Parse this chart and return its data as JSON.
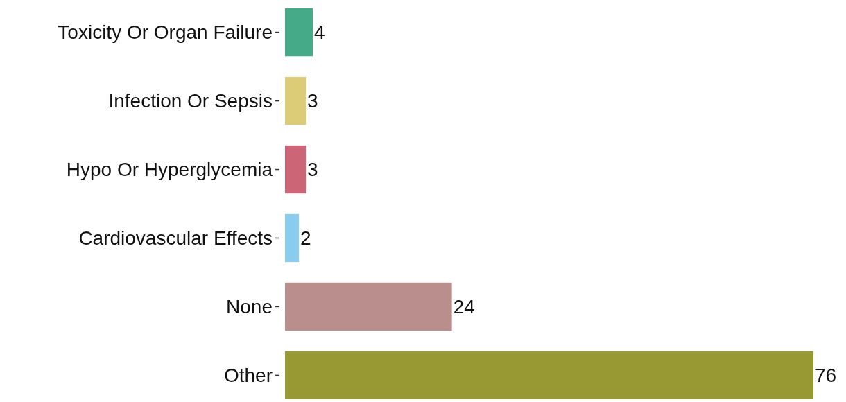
{
  "chart_data": {
    "type": "bar",
    "orientation": "horizontal",
    "categories": [
      "Toxicity Or Organ Failure",
      "Infection Or Sepsis",
      "Hypo Or Hyperglycemia",
      "Cardiovascular Effects",
      "None",
      "Other"
    ],
    "values": [
      4,
      3,
      3,
      2,
      24,
      76
    ],
    "colors": [
      "#44aa88",
      "#ddcc77",
      "#cc6677",
      "#88ccee",
      "#bb8e8e",
      "#999933"
    ],
    "data_labels": true
  }
}
